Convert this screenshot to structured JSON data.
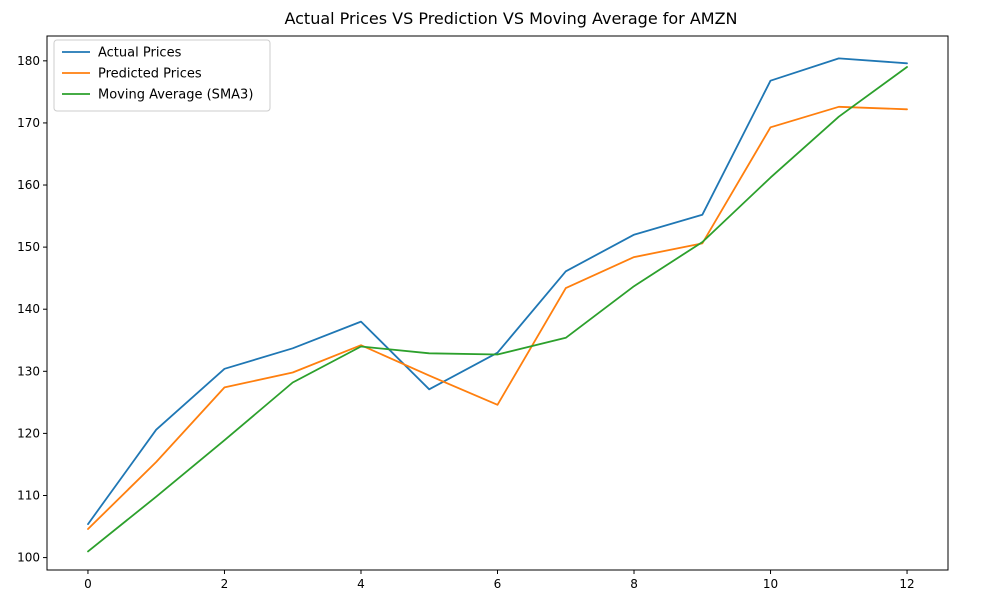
{
  "chart_data": {
    "type": "line",
    "title": "Actual Prices VS Prediction VS Moving Average for AMZN",
    "xlabel": "",
    "ylabel": "",
    "x": [
      0,
      1,
      2,
      3,
      4,
      5,
      6,
      7,
      8,
      9,
      10,
      11,
      12
    ],
    "xlim": [
      -0.6,
      12.6
    ],
    "ylim": [
      98,
      184
    ],
    "xticks": [
      0,
      2,
      4,
      6,
      8,
      10,
      12
    ],
    "yticks": [
      100,
      110,
      120,
      130,
      140,
      150,
      160,
      170,
      180
    ],
    "grid": false,
    "legend": "top-left",
    "series": [
      {
        "name": "Actual Prices",
        "color": "#1f77b4",
        "values": [
          105.4,
          120.6,
          130.4,
          133.7,
          138.0,
          127.1,
          133.0,
          146.1,
          152.0,
          155.2,
          176.8,
          180.4,
          179.6
        ]
      },
      {
        "name": "Predicted Prices",
        "color": "#ff7f0e",
        "values": [
          104.6,
          115.4,
          127.4,
          129.8,
          134.2,
          129.3,
          124.6,
          143.4,
          148.4,
          150.6,
          169.3,
          172.6,
          172.2
        ]
      },
      {
        "name": "Moving Average (SMA3)",
        "color": "#2ca02c",
        "values": [
          101.0,
          109.8,
          118.9,
          128.2,
          134.0,
          132.9,
          132.7,
          135.4,
          143.7,
          150.8,
          161.2,
          171.0,
          179.0
        ]
      }
    ]
  }
}
